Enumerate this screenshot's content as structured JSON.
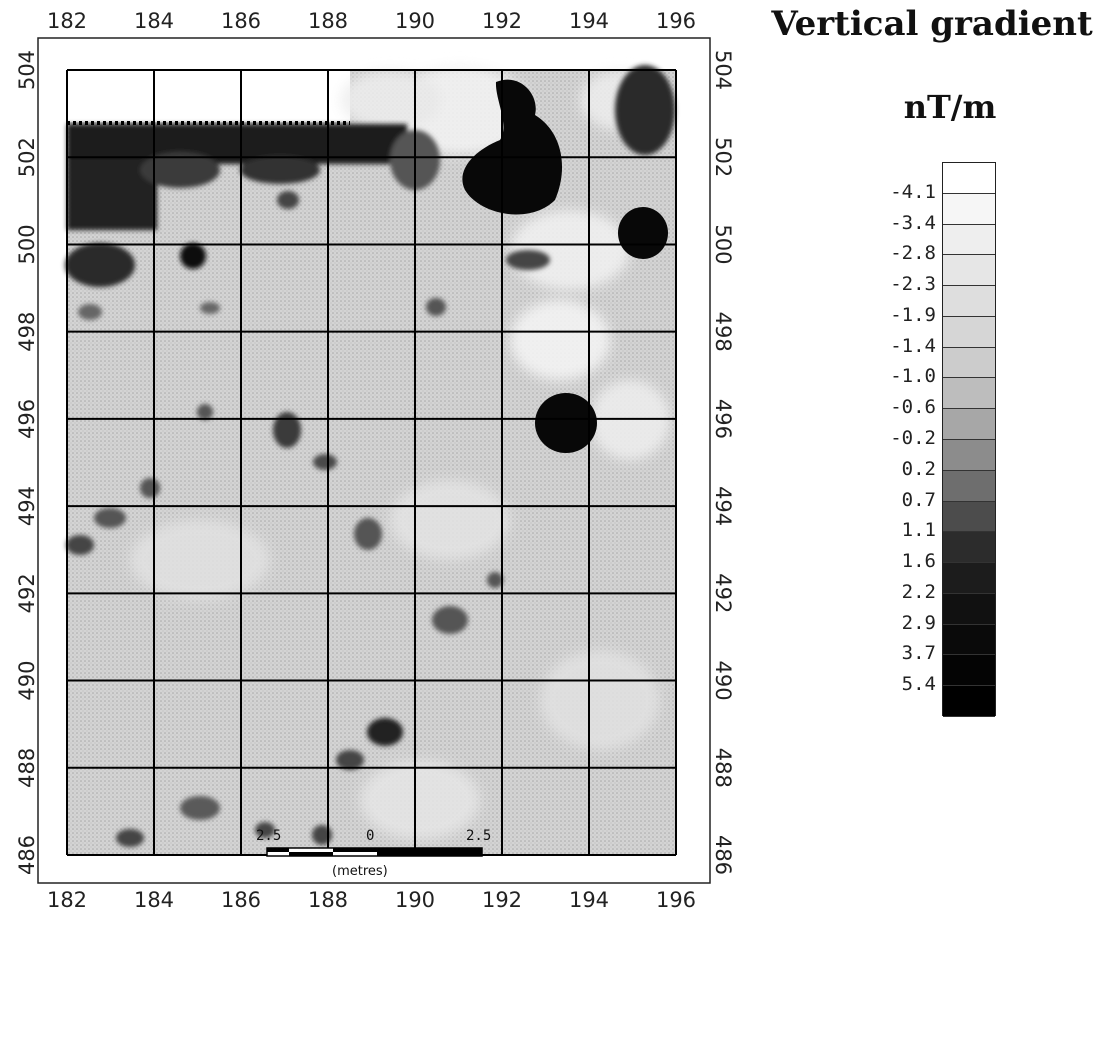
{
  "legend": {
    "title": "Vertical gradient",
    "units": "nT/m",
    "labels": [
      "-4.1",
      "-3.4",
      "-2.8",
      "-2.3",
      "-1.9",
      "-1.4",
      "-1.0",
      "-0.6",
      "-0.2",
      "0.2",
      "0.7",
      "1.1",
      "1.6",
      "2.2",
      "2.9",
      "3.7",
      "5.4"
    ],
    "swatch_colors": [
      "#ffffff",
      "#f6f6f6",
      "#eeeeee",
      "#e6e6e6",
      "#dedede",
      "#d6d6d6",
      "#cccccc",
      "#bdbdbd",
      "#a7a7a7",
      "#8c8c8c",
      "#6e6e6e",
      "#4c4c4c",
      "#2c2c2c",
      "#1c1c1c",
      "#111111",
      "#0a0a0a",
      "#040404",
      "#000000"
    ]
  },
  "axes": {
    "x_ticks": [
      "182",
      "184",
      "186",
      "188",
      "190",
      "192",
      "194",
      "196"
    ],
    "y_ticks": [
      "504",
      "502",
      "500",
      "498",
      "496",
      "494",
      "492",
      "490",
      "488",
      "486"
    ],
    "x_range": [
      182,
      196
    ],
    "y_range": [
      486,
      504
    ]
  },
  "anomalies": [
    {
      "type": "strong-positive",
      "x": 192.6,
      "y": 502.4
    },
    {
      "type": "strong-positive",
      "x": 195.3,
      "y": 500.3
    },
    {
      "type": "strong-positive",
      "x": 193.4,
      "y": 495.9
    }
  ],
  "scale_bar": {
    "left_label": "2.5",
    "center_label": "0",
    "right_label": "2.5",
    "units": "(metres)"
  },
  "colors": {
    "survey_fill": "#d6d6d6",
    "grid_line": "#000000",
    "dark_anomaly": "#0a0a0a"
  }
}
